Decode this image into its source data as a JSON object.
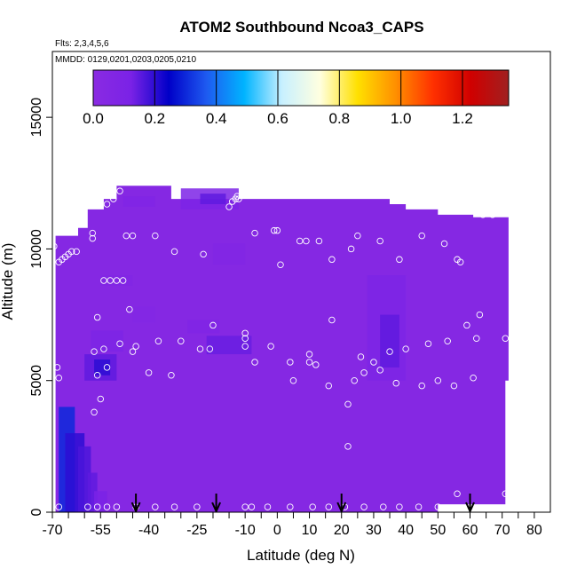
{
  "chart_data": {
    "type": "heatmap",
    "title": "ATOM2 Southbound Ncoa3_CAPS",
    "subtitle_flights": "Flts: 2,3,4,5,6",
    "subtitle_dates": "MMDD: 0129,0201,0203,0205,0210",
    "xlabel": "Latitude (deg N)",
    "ylabel": "Altitude (m)",
    "xlim": [
      -70,
      85
    ],
    "ylim": [
      0,
      17500
    ],
    "x_ticks": [
      -70,
      -55,
      -40,
      -25,
      -10,
      0,
      10,
      20,
      30,
      40,
      50,
      60,
      70,
      80
    ],
    "x_tick_labels": [
      "-70",
      "-55",
      "-40",
      "-25",
      "-10",
      "0",
      "10",
      "20",
      "30",
      "40",
      "50",
      "60",
      "70",
      "80"
    ],
    "x_minor_ticks": [
      -65,
      -60,
      -50,
      -45,
      -35,
      -30,
      -20,
      -15,
      -5,
      5,
      15,
      25,
      35,
      45,
      55,
      65,
      75
    ],
    "y_ticks": [
      0,
      5000,
      10000,
      15000
    ],
    "y_tick_labels": [
      "0",
      "5000",
      "10000",
      "15000"
    ],
    "colorbar": {
      "min": 0.0,
      "max": 1.35,
      "ticks": [
        0.0,
        0.2,
        0.4,
        0.6,
        0.8,
        1.0,
        1.2
      ],
      "tick_labels": [
        "0.0",
        "0.2",
        "0.4",
        "0.6",
        "0.8",
        "1.0",
        "1.2"
      ],
      "colors": [
        "#8a2be2",
        "#7a22e6",
        "#0000c8",
        "#1e5af0",
        "#00b4ff",
        "#c8f0ff",
        "#ffffe0",
        "#ffe000",
        "#ff9000",
        "#ff3000",
        "#d00000",
        "#a02020"
      ]
    },
    "background_value": 0.04,
    "envelope": {
      "x": [
        -69,
        -69,
        -62,
        -62,
        -59,
        -59,
        -54,
        -54,
        -50,
        -50,
        -33,
        -33,
        35,
        35,
        40,
        40,
        50,
        50,
        61,
        61,
        72,
        72,
        71,
        71,
        50,
        50,
        20,
        20,
        -69
      ],
      "y": [
        0,
        10500,
        10500,
        10800,
        10800,
        11500,
        11500,
        11900,
        11900,
        12400,
        12400,
        11900,
        11900,
        11700,
        11700,
        11500,
        11500,
        11300,
        11300,
        11200,
        11200,
        5000,
        5000,
        300,
        300,
        0,
        0,
        0,
        0
      ]
    },
    "anomalies": [
      {
        "x": [
          -68,
          -63
        ],
        "y": [
          0,
          4000
        ],
        "value": 0.3
      },
      {
        "x": [
          -66,
          -60
        ],
        "y": [
          0,
          3000
        ],
        "value": 0.2
      },
      {
        "x": [
          -62,
          -58
        ],
        "y": [
          0,
          2500
        ],
        "value": 0.17
      },
      {
        "x": [
          -59,
          -56
        ],
        "y": [
          0,
          1500
        ],
        "value": 0.15
      },
      {
        "x": [
          -57,
          -53
        ],
        "y": [
          0,
          800
        ],
        "value": 0.12
      },
      {
        "x": [
          -60,
          -50
        ],
        "y": [
          5000,
          6000
        ],
        "value": 0.15
      },
      {
        "x": [
          -57,
          -52
        ],
        "y": [
          5200,
          5800
        ],
        "value": 0.2
      },
      {
        "x": [
          -58,
          -48
        ],
        "y": [
          6100,
          6900
        ],
        "value": 0.1
      },
      {
        "x": [
          -22,
          -8
        ],
        "y": [
          6000,
          6700
        ],
        "value": 0.14
      },
      {
        "x": [
          -48,
          -38
        ],
        "y": [
          11600,
          12000
        ],
        "value": 0.08
      },
      {
        "x": [
          -30,
          -12
        ],
        "y": [
          11500,
          12300
        ],
        "value": 0.11
      },
      {
        "x": [
          -24,
          -16
        ],
        "y": [
          11700,
          12100
        ],
        "value": 0.15
      },
      {
        "x": [
          -20,
          -10
        ],
        "y": [
          9400,
          10200
        ],
        "value": 0.07
      },
      {
        "x": [
          -28,
          -18
        ],
        "y": [
          6800,
          7300
        ],
        "value": 0.08
      },
      {
        "x": [
          28,
          40
        ],
        "y": [
          5000,
          9000
        ],
        "value": 0.1
      },
      {
        "x": [
          32,
          38
        ],
        "y": [
          5500,
          7500
        ],
        "value": 0.15
      },
      {
        "x": [
          -55,
          -45
        ],
        "y": [
          8600,
          9000
        ],
        "value": 0.07
      },
      {
        "x": [
          -45,
          -38
        ],
        "y": [
          7200,
          7800
        ],
        "value": 0.06
      }
    ],
    "sample_points": [
      [
        -69.5,
        10100
      ],
      [
        -68,
        9500
      ],
      [
        -67,
        9600
      ],
      [
        -66,
        9700
      ],
      [
        -65,
        9800
      ],
      [
        -64,
        9900
      ],
      [
        -62.5,
        9900
      ],
      [
        -57.5,
        10600
      ],
      [
        -57.5,
        10400
      ],
      [
        -53,
        11700
      ],
      [
        -51,
        11900
      ],
      [
        -49,
        12200
      ],
      [
        -47,
        10500
      ],
      [
        -45,
        10500
      ],
      [
        -38,
        10500
      ],
      [
        -32,
        9900
      ],
      [
        -23,
        9800
      ],
      [
        -15,
        11600
      ],
      [
        -14,
        11800
      ],
      [
        -13,
        11900
      ],
      [
        -12.5,
        12000
      ],
      [
        -12,
        11900
      ],
      [
        -7,
        10600
      ],
      [
        -1,
        10700
      ],
      [
        0,
        10700
      ],
      [
        1,
        9400
      ],
      [
        7,
        10300
      ],
      [
        9,
        10300
      ],
      [
        13,
        10300
      ],
      [
        17,
        9600
      ],
      [
        23,
        10000
      ],
      [
        25,
        10500
      ],
      [
        32,
        10300
      ],
      [
        38,
        9600
      ],
      [
        45,
        10500
      ],
      [
        52,
        10200
      ],
      [
        56,
        9600
      ],
      [
        57,
        9500
      ],
      [
        64,
        11300
      ],
      [
        67,
        11300
      ],
      [
        -54,
        8800
      ],
      [
        -52,
        8800
      ],
      [
        -50,
        8800
      ],
      [
        -48,
        8800
      ],
      [
        -46,
        7700
      ],
      [
        -56,
        7400
      ],
      [
        -49,
        6400
      ],
      [
        -44,
        6300
      ],
      [
        -37,
        6500
      ],
      [
        -30,
        6500
      ],
      [
        -24,
        6200
      ],
      [
        -21,
        6200
      ],
      [
        -20,
        7100
      ],
      [
        -10,
        6300
      ],
      [
        -10,
        6600
      ],
      [
        -10,
        6800
      ],
      [
        -7,
        5700
      ],
      [
        -2,
        6300
      ],
      [
        4,
        5700
      ],
      [
        5,
        5000
      ],
      [
        10,
        5700
      ],
      [
        10,
        6000
      ],
      [
        12,
        5600
      ],
      [
        16,
        4800
      ],
      [
        17,
        7300
      ],
      [
        22,
        4100
      ],
      [
        24,
        5000
      ],
      [
        26,
        5900
      ],
      [
        27,
        5300
      ],
      [
        30,
        5700
      ],
      [
        32,
        5400
      ],
      [
        35,
        6100
      ],
      [
        37,
        4900
      ],
      [
        40,
        6200
      ],
      [
        45,
        4800
      ],
      [
        47,
        6400
      ],
      [
        50,
        5000
      ],
      [
        53,
        6500
      ],
      [
        55,
        4800
      ],
      [
        59,
        7100
      ],
      [
        61,
        5100
      ],
      [
        62,
        6600
      ],
      [
        63,
        7500
      ],
      [
        -68.5,
        5500
      ],
      [
        -68,
        5100
      ],
      [
        -57,
        6100
      ],
      [
        -54,
        6200
      ],
      [
        -53,
        5500
      ],
      [
        -56,
        5200
      ],
      [
        -45,
        6100
      ],
      [
        -40,
        5300
      ],
      [
        -33,
        5200
      ],
      [
        -55,
        4300
      ],
      [
        -57,
        3800
      ],
      [
        22,
        2500
      ],
      [
        72,
        700
      ],
      [
        71,
        6600
      ],
      [
        -68,
        200
      ],
      [
        -59,
        200
      ],
      [
        -56,
        200
      ],
      [
        -53,
        200
      ],
      [
        -50,
        200
      ],
      [
        -44,
        200
      ],
      [
        -38,
        200
      ],
      [
        -32,
        200
      ],
      [
        -25,
        200
      ],
      [
        -10,
        200
      ],
      [
        -8,
        200
      ],
      [
        -3,
        200
      ],
      [
        4,
        200
      ],
      [
        11,
        200
      ],
      [
        16,
        200
      ],
      [
        21,
        200
      ],
      [
        27,
        200
      ],
      [
        33,
        200
      ],
      [
        38,
        200
      ],
      [
        44,
        200
      ],
      [
        50,
        200
      ],
      [
        56,
        700
      ],
      [
        71,
        700
      ]
    ],
    "arrows_x": [
      -44,
      -19,
      20,
      60
    ]
  }
}
